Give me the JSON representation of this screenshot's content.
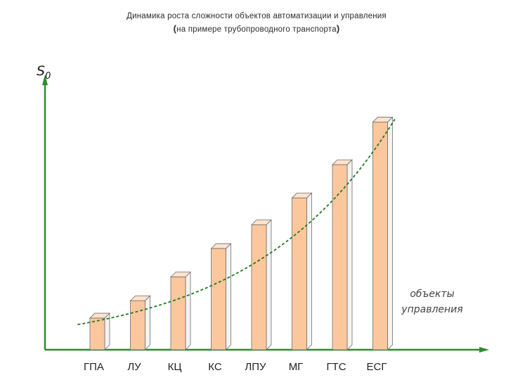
{
  "chart_data": {
    "type": "bar",
    "title": "Динамика роста сложности объектов автоматизации и управления",
    "subtitle": "на примере трубопроводного транспорта",
    "ylabel": "S",
    "ylabel_sub": "0",
    "xlabel": "объекты управления",
    "categories": [
      "ГПА",
      "ЛУ",
      "КЦ",
      "КС",
      "ЛПУ",
      "МГ",
      "ГТС",
      "ЕСГ"
    ],
    "values": [
      1.0,
      1.55,
      2.3,
      3.2,
      3.95,
      4.8,
      5.85,
      7.2
    ],
    "ylim": [
      0,
      8.5
    ],
    "trend": "exponential",
    "grid": false,
    "legend": "none"
  },
  "colors": {
    "axis": "#2e8b2e",
    "bar_front": "#fcc79d",
    "bar_top": "#fde3ce",
    "bar_side": "#f3f3f3",
    "bar_edge": "#6e6e6e",
    "trend": "#1e7a1e"
  }
}
